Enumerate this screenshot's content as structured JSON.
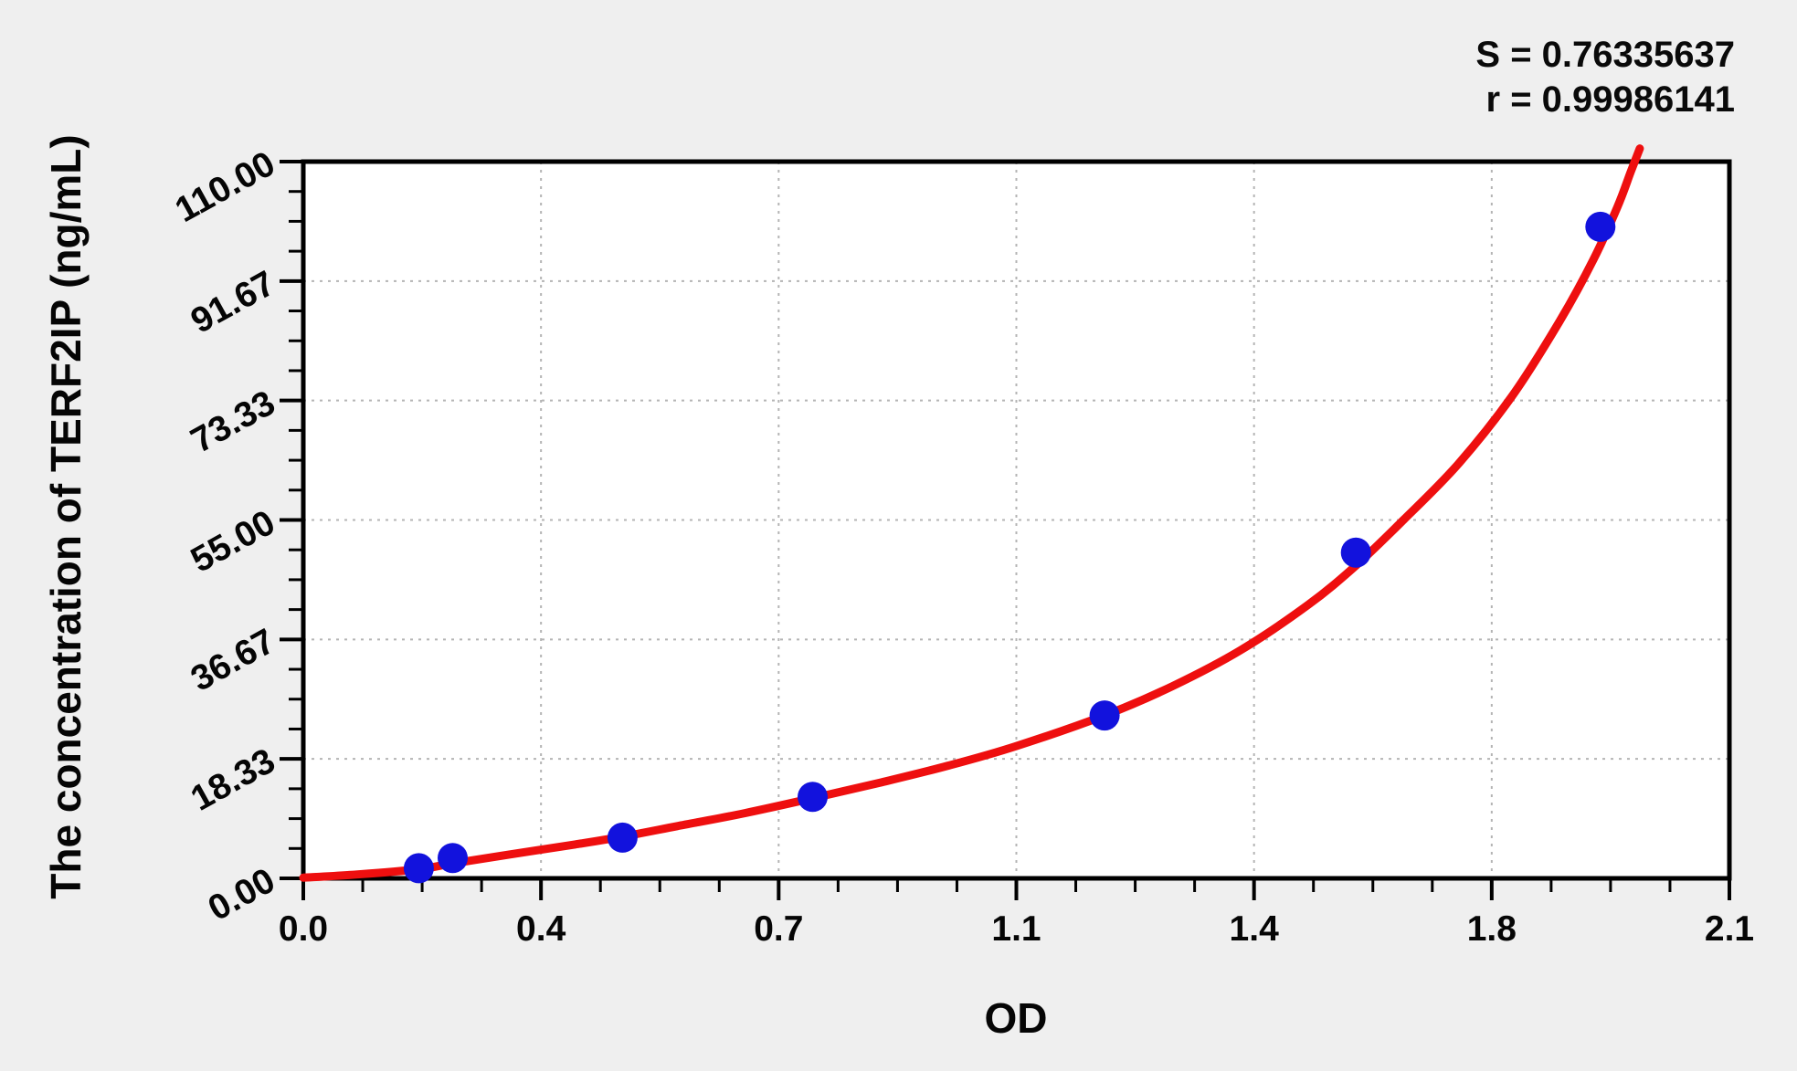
{
  "stats": {
    "s_line": "S = 0.76335637",
    "r_line": "r = 0.99986141",
    "S": "0.76335637",
    "r": "0.99986141"
  },
  "colors": {
    "page_background": "#efefef",
    "plot_background": "#ffffff",
    "frame": "#000000",
    "grid": "#b4b4b4",
    "curve_red": "#ee0f0f",
    "point_blue": "#1212dd",
    "text": "#050505"
  },
  "chart_data": {
    "type": "scatter",
    "title": "",
    "xlabel": "OD",
    "ylabel": "The concentration of TERF2IP (ng/mL)",
    "xlim": [
      0,
      2.1
    ],
    "ylim": [
      0,
      110
    ],
    "grid": {
      "style": "dashed",
      "at": "major-ticks",
      "color": "#b4b4b4"
    },
    "legend": "none",
    "x_ticks": {
      "values": [
        0,
        0.35,
        0.7,
        1.05,
        1.4,
        1.75,
        2.1
      ],
      "labels": [
        "0.0",
        "0.4",
        "0.7",
        "1.1",
        "1.4",
        "1.8",
        "2.1"
      ],
      "minor_divisions": 4
    },
    "y_ticks": {
      "values": [
        0,
        18.333,
        36.667,
        55,
        73.333,
        91.667,
        110
      ],
      "labels": [
        "0.00",
        "18.33",
        "36.67",
        "55.00",
        "73.33",
        "91.67",
        "110.00"
      ],
      "minor_divisions": 4
    },
    "series": [
      {
        "name": "standard-points",
        "type": "scatter",
        "color": "#1212dd",
        "marker": "circle",
        "marker_radius": 16.5,
        "points": [
          [
            0.17,
            1.56
          ],
          [
            0.22,
            3.13
          ],
          [
            0.47,
            6.25
          ],
          [
            0.75,
            12.5
          ],
          [
            1.18,
            25.0
          ],
          [
            1.55,
            50.0
          ],
          [
            1.91,
            100.0
          ]
        ]
      },
      {
        "name": "fitted-curve",
        "type": "line",
        "color": "#ee0f0f",
        "stroke_width": 9,
        "points": [
          [
            0.0,
            0.1
          ],
          [
            0.08,
            0.6
          ],
          [
            0.17,
            1.4
          ],
          [
            0.22,
            2.3
          ],
          [
            0.3,
            3.6
          ],
          [
            0.4,
            5.2
          ],
          [
            0.47,
            6.4
          ],
          [
            0.55,
            8.0
          ],
          [
            0.65,
            10.0
          ],
          [
            0.75,
            12.3
          ],
          [
            0.85,
            14.7
          ],
          [
            0.95,
            17.3
          ],
          [
            1.05,
            20.3
          ],
          [
            1.18,
            25.0
          ],
          [
            1.28,
            29.5
          ],
          [
            1.38,
            35.0
          ],
          [
            1.48,
            42.0
          ],
          [
            1.55,
            48.0
          ],
          [
            1.62,
            55.0
          ],
          [
            1.7,
            63.5
          ],
          [
            1.78,
            74.0
          ],
          [
            1.85,
            85.5
          ],
          [
            1.9,
            95.0
          ],
          [
            1.935,
            103.0
          ],
          [
            1.955,
            108.5
          ],
          [
            1.968,
            112.0
          ]
        ]
      }
    ],
    "annotations": [
      {
        "text": "S = 0.76335637",
        "position": "top-right"
      },
      {
        "text": "r = 0.99986141",
        "position": "top-right"
      }
    ]
  }
}
